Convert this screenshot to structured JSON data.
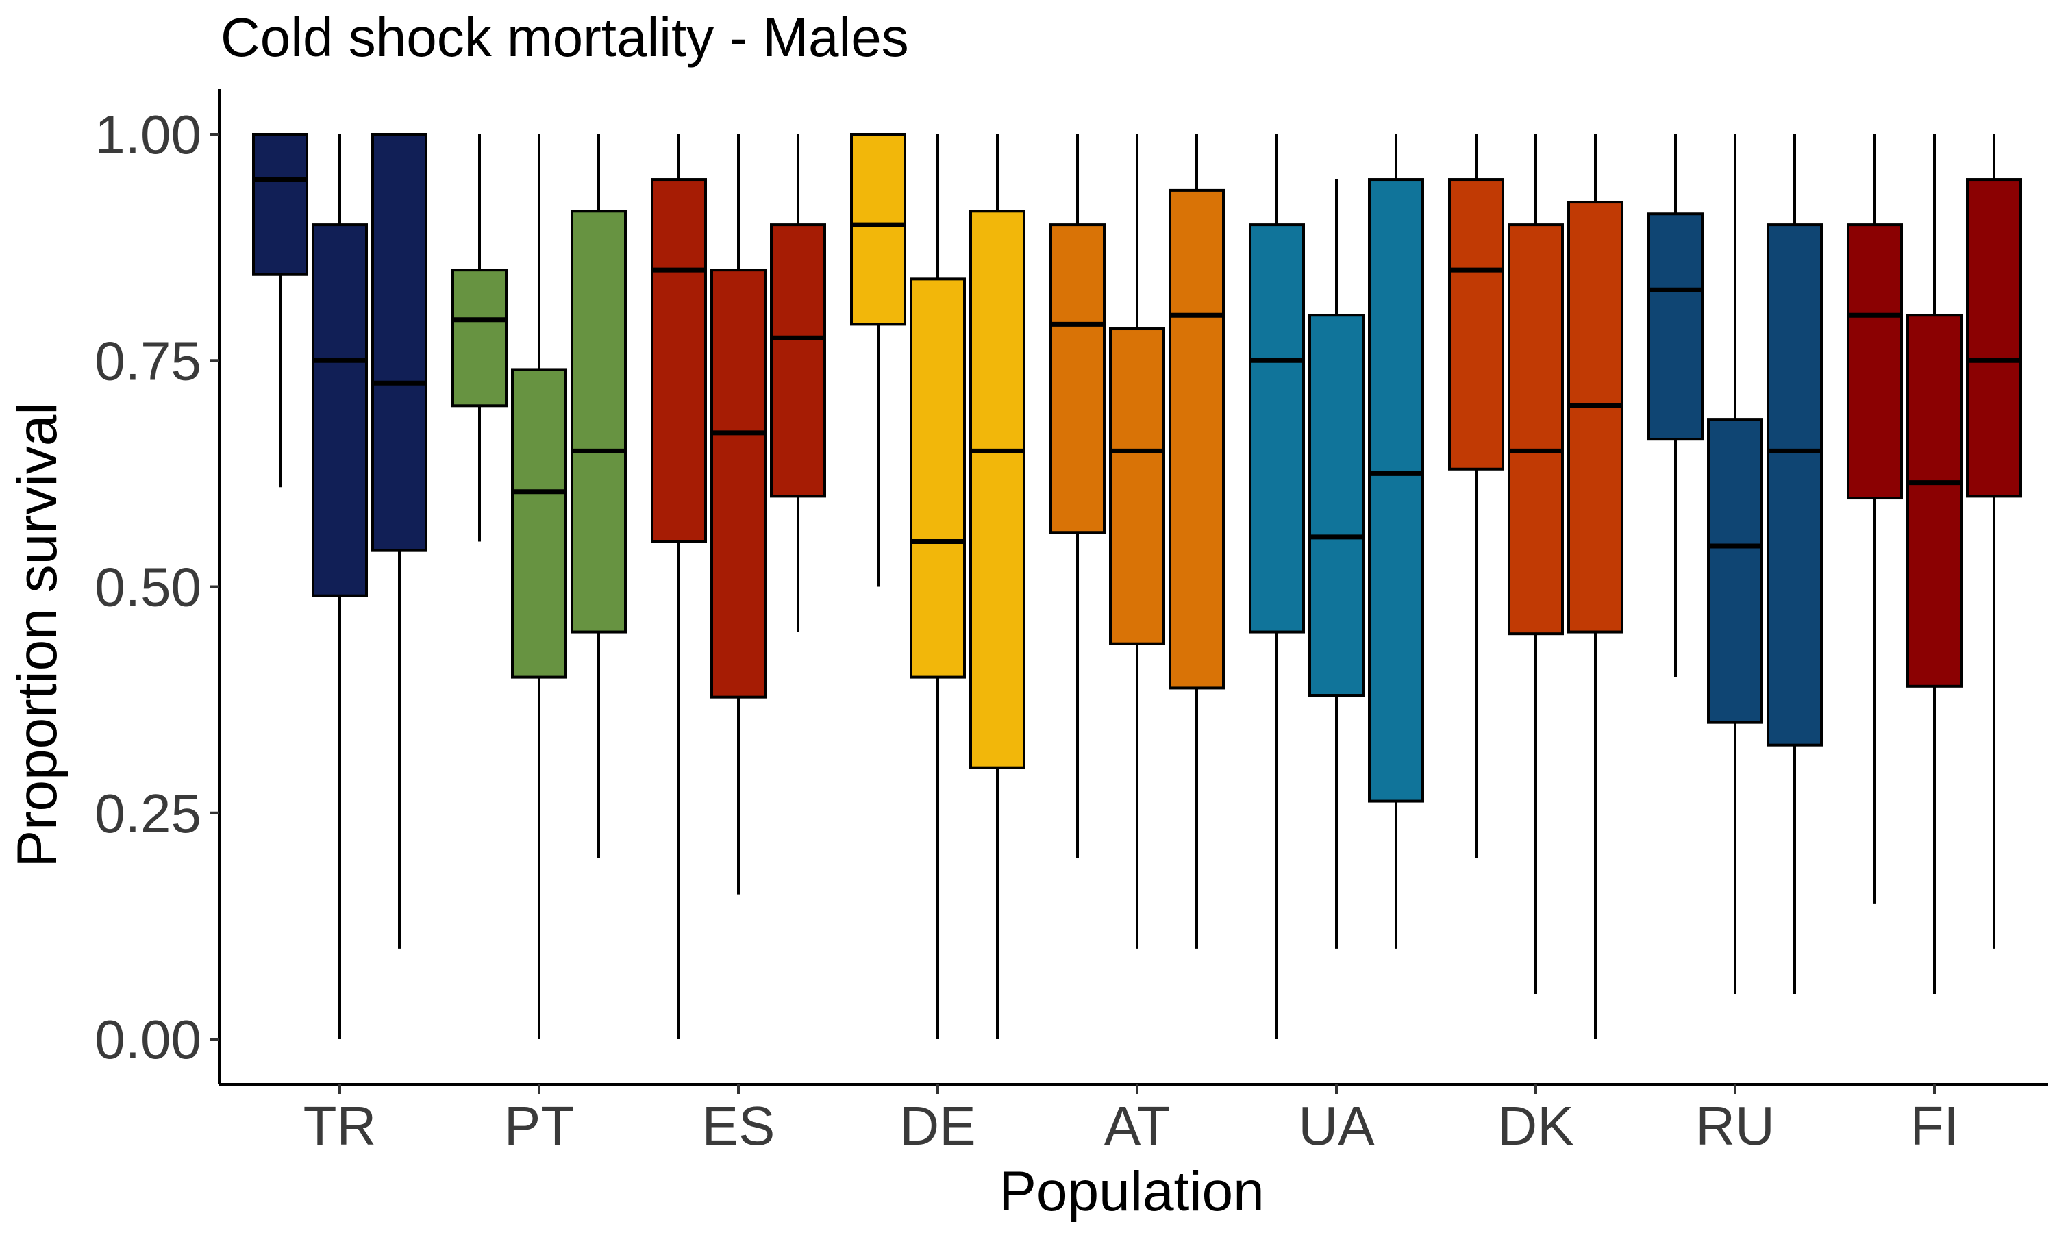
{
  "chart_data": {
    "type": "boxplot",
    "title": "Cold shock mortality - Males",
    "xlabel": "Population",
    "ylabel": "Proportion survival",
    "ylim": [
      -0.045,
      1.045
    ],
    "yticks": [
      0.0,
      0.25,
      0.5,
      0.75,
      1.0
    ],
    "ytick_labels": [
      "0.00",
      "0.25",
      "0.50",
      "0.75",
      "1.00"
    ],
    "grid": false,
    "legend": "none",
    "categories": [
      "TR",
      "PT",
      "ES",
      "DE",
      "AT",
      "UA",
      "DK",
      "RU",
      "FI"
    ],
    "colors": {
      "TR": "#111f56",
      "PT": "#679341",
      "ES": "#a61c04",
      "DE": "#f2b70a",
      "AT": "#d97306",
      "UA": "#10749a",
      "DK": "#c13a04",
      "RU": "#0f4573",
      "FI": "#8b0102"
    },
    "groups": [
      {
        "category": "TR",
        "boxes": [
          {
            "min": 0.61,
            "q1": 0.845,
            "median": 0.95,
            "q3": 1.0,
            "max": 1.0
          },
          {
            "min": 0.0,
            "q1": 0.49,
            "median": 0.75,
            "q3": 0.9,
            "max": 1.0
          },
          {
            "min": 0.1,
            "q1": 0.54,
            "median": 0.725,
            "q3": 1.0,
            "max": 1.0
          }
        ]
      },
      {
        "category": "PT",
        "boxes": [
          {
            "min": 0.55,
            "q1": 0.7,
            "median": 0.795,
            "q3": 0.85,
            "max": 1.0
          },
          {
            "min": 0.0,
            "q1": 0.4,
            "median": 0.605,
            "q3": 0.74,
            "max": 1.0
          },
          {
            "min": 0.2,
            "q1": 0.45,
            "median": 0.65,
            "q3": 0.915,
            "max": 1.0
          }
        ]
      },
      {
        "category": "ES",
        "boxes": [
          {
            "min": 0.0,
            "q1": 0.55,
            "median": 0.85,
            "q3": 0.95,
            "max": 1.0
          },
          {
            "min": 0.16,
            "q1": 0.378,
            "median": 0.67,
            "q3": 0.85,
            "max": 1.0
          },
          {
            "min": 0.45,
            "q1": 0.6,
            "median": 0.775,
            "q3": 0.9,
            "max": 1.0
          }
        ]
      },
      {
        "category": "DE",
        "boxes": [
          {
            "min": 0.5,
            "q1": 0.79,
            "median": 0.9,
            "q3": 1.0,
            "max": 1.0
          },
          {
            "min": 0.0,
            "q1": 0.4,
            "median": 0.55,
            "q3": 0.84,
            "max": 1.0
          },
          {
            "min": 0.0,
            "q1": 0.3,
            "median": 0.65,
            "q3": 0.915,
            "max": 1.0
          }
        ]
      },
      {
        "category": "AT",
        "boxes": [
          {
            "min": 0.2,
            "q1": 0.56,
            "median": 0.79,
            "q3": 0.9,
            "max": 1.0
          },
          {
            "min": 0.1,
            "q1": 0.437,
            "median": 0.65,
            "q3": 0.785,
            "max": 1.0
          },
          {
            "min": 0.1,
            "q1": 0.388,
            "median": 0.8,
            "q3": 0.938,
            "max": 1.0
          }
        ]
      },
      {
        "category": "UA",
        "boxes": [
          {
            "min": 0.0,
            "q1": 0.45,
            "median": 0.75,
            "q3": 0.9,
            "max": 1.0
          },
          {
            "min": 0.1,
            "q1": 0.38,
            "median": 0.555,
            "q3": 0.8,
            "max": 0.95
          },
          {
            "min": 0.1,
            "q1": 0.263,
            "median": 0.625,
            "q3": 0.95,
            "max": 1.0
          }
        ]
      },
      {
        "category": "DK",
        "boxes": [
          {
            "min": 0.2,
            "q1": 0.63,
            "median": 0.85,
            "q3": 0.95,
            "max": 1.0
          },
          {
            "min": 0.05,
            "q1": 0.448,
            "median": 0.65,
            "q3": 0.9,
            "max": 1.0
          },
          {
            "min": 0.0,
            "q1": 0.45,
            "median": 0.7,
            "q3": 0.925,
            "max": 1.0
          }
        ]
      },
      {
        "category": "RU",
        "boxes": [
          {
            "min": 0.4,
            "q1": 0.663,
            "median": 0.828,
            "q3": 0.912,
            "max": 1.0
          },
          {
            "min": 0.05,
            "q1": 0.35,
            "median": 0.545,
            "q3": 0.685,
            "max": 1.0
          },
          {
            "min": 0.05,
            "q1": 0.325,
            "median": 0.65,
            "q3": 0.9,
            "max": 1.0
          }
        ]
      },
      {
        "category": "FI",
        "boxes": [
          {
            "min": 0.15,
            "q1": 0.598,
            "median": 0.8,
            "q3": 0.9,
            "max": 1.0
          },
          {
            "min": 0.05,
            "q1": 0.39,
            "median": 0.615,
            "q3": 0.8,
            "max": 1.0
          },
          {
            "min": 0.1,
            "q1": 0.6,
            "median": 0.75,
            "q3": 0.95,
            "max": 1.0
          }
        ]
      }
    ]
  }
}
